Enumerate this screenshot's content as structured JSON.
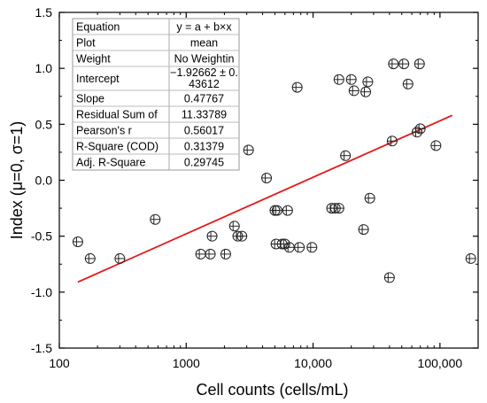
{
  "chart_data": {
    "type": "scatter",
    "xlabel": "Cell counts (cells/mL)",
    "ylabel": "Index (μ=0, σ=1)",
    "xscale": "log",
    "xlim": [
      100,
      200000
    ],
    "ylim": [
      -1.5,
      1.5
    ],
    "x_ticks": [
      100,
      1000,
      10000,
      100000
    ],
    "x_tick_labels": [
      "100",
      "1000",
      "10,000",
      "100,000"
    ],
    "y_ticks": [
      -1.5,
      -1.0,
      -0.5,
      0.0,
      0.5,
      1.0,
      1.5
    ],
    "y_tick_labels": [
      "-1.5",
      "-1.0",
      "-0.5",
      "0.0",
      "0.5",
      "1.0",
      "1.5"
    ],
    "grid": false,
    "series": [
      {
        "marker": "circle-with-error-bar",
        "points": [
          [
            140,
            -0.55
          ],
          [
            175,
            -0.7
          ],
          [
            300,
            -0.7
          ],
          [
            570,
            -0.35
          ],
          [
            1300,
            -0.66
          ],
          [
            1550,
            -0.66
          ],
          [
            1600,
            -0.5
          ],
          [
            2050,
            -0.66
          ],
          [
            2400,
            -0.41
          ],
          [
            2550,
            -0.5
          ],
          [
            2750,
            -0.5
          ],
          [
            3100,
            0.27
          ],
          [
            4300,
            0.02
          ],
          [
            5000,
            -0.27
          ],
          [
            5100,
            -0.57
          ],
          [
            5200,
            -0.27
          ],
          [
            5700,
            -0.57
          ],
          [
            6000,
            -0.57
          ],
          [
            6300,
            -0.27
          ],
          [
            6500,
            -0.6
          ],
          [
            7500,
            0.83
          ],
          [
            7800,
            -0.6
          ],
          [
            9800,
            -0.6
          ],
          [
            14000,
            -0.25
          ],
          [
            15000,
            -0.25
          ],
          [
            16000,
            -0.25
          ],
          [
            16000,
            0.9
          ],
          [
            18000,
            0.22
          ],
          [
            20000,
            0.9
          ],
          [
            21000,
            0.8
          ],
          [
            25000,
            -0.44
          ],
          [
            26000,
            0.79
          ],
          [
            27000,
            0.88
          ],
          [
            28000,
            -0.16
          ],
          [
            40000,
            -0.87
          ],
          [
            42000,
            0.35
          ],
          [
            43000,
            1.04
          ],
          [
            52000,
            1.04
          ],
          [
            56000,
            0.86
          ],
          [
            66000,
            0.43
          ],
          [
            69000,
            1.04
          ],
          [
            70000,
            0.46
          ],
          [
            93000,
            0.31
          ],
          [
            175000,
            -0.7
          ]
        ]
      }
    ],
    "fit_line": {
      "color": "#e31a1c",
      "x": [
        140,
        125000
      ],
      "y": [
        -0.91,
        0.58
      ]
    },
    "stats_table": [
      [
        "Equation",
        "y = a + b×x"
      ],
      [
        "Plot",
        "mean"
      ],
      [
        "Weight",
        "No Weightin"
      ],
      [
        "Intercept",
        [
          "−1.92662 ± 0.",
          "43612"
        ]
      ],
      [
        "Slope",
        "0.47767"
      ],
      [
        "Residual Sum of",
        "11.33789"
      ],
      [
        "Pearson's r",
        "0.56017"
      ],
      [
        "R-Square (COD)",
        "0.31379"
      ],
      [
        "Adj. R-Square",
        "0.29745"
      ]
    ]
  }
}
